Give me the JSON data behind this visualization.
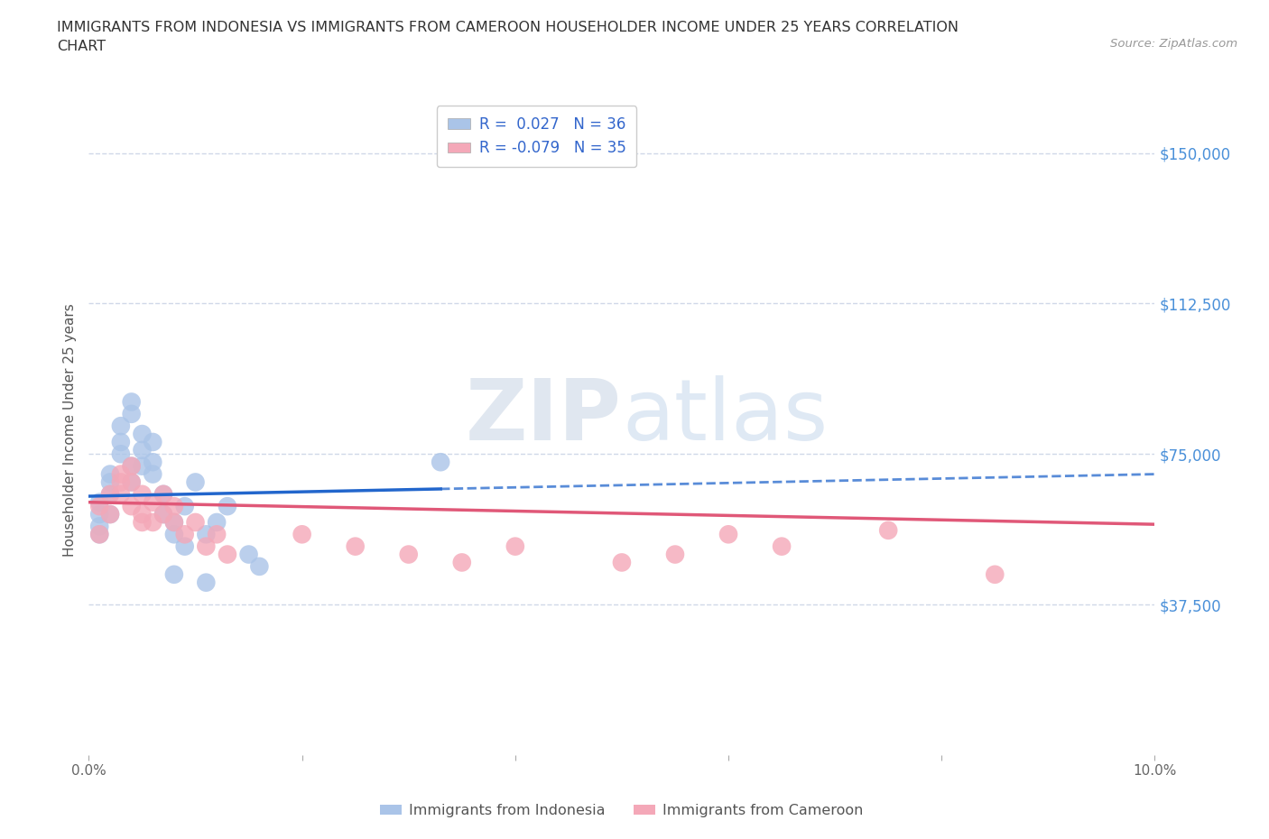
{
  "title": "IMMIGRANTS FROM INDONESIA VS IMMIGRANTS FROM CAMEROON HOUSEHOLDER INCOME UNDER 25 YEARS CORRELATION\nCHART",
  "source": "Source: ZipAtlas.com",
  "xlabel": "",
  "ylabel": "Householder Income Under 25 years",
  "xlim": [
    0.0,
    0.1
  ],
  "ylim": [
    0,
    162000
  ],
  "yticks": [
    0,
    37500,
    75000,
    112500,
    150000
  ],
  "ytick_labels": [
    "",
    "$37,500",
    "$75,000",
    "$112,500",
    "$150,000"
  ],
  "xticks": [
    0.0,
    0.02,
    0.04,
    0.06,
    0.08,
    0.1
  ],
  "xtick_labels": [
    "0.0%",
    "",
    "",
    "",
    "",
    "10.0%"
  ],
  "background_color": "#ffffff",
  "grid_color": "#d0d8e8",
  "indonesia_color": "#aac4e8",
  "cameroon_color": "#f4a8b8",
  "trend_indonesia_color": "#2266cc",
  "trend_cameroon_color": "#e05878",
  "r_indonesia": 0.027,
  "n_indonesia": 36,
  "r_cameroon": -0.079,
  "n_cameroon": 35,
  "watermark_zip": "ZIP",
  "watermark_atlas": "atlas",
  "legend_label_indonesia": "Immigrants from Indonesia",
  "legend_label_cameroon": "Immigrants from Cameroon",
  "indonesia_x": [
    0.001,
    0.001,
    0.001,
    0.001,
    0.002,
    0.002,
    0.002,
    0.002,
    0.003,
    0.003,
    0.003,
    0.004,
    0.004,
    0.004,
    0.004,
    0.005,
    0.005,
    0.005,
    0.006,
    0.006,
    0.006,
    0.007,
    0.007,
    0.008,
    0.008,
    0.009,
    0.009,
    0.01,
    0.011,
    0.012,
    0.013,
    0.015,
    0.016,
    0.033,
    0.011,
    0.008
  ],
  "indonesia_y": [
    60000,
    63000,
    57000,
    55000,
    65000,
    70000,
    68000,
    60000,
    78000,
    82000,
    75000,
    85000,
    88000,
    72000,
    68000,
    80000,
    76000,
    72000,
    78000,
    73000,
    70000,
    65000,
    60000,
    58000,
    55000,
    52000,
    62000,
    68000,
    55000,
    58000,
    62000,
    50000,
    47000,
    73000,
    43000,
    45000
  ],
  "cameroon_x": [
    0.001,
    0.001,
    0.002,
    0.002,
    0.003,
    0.003,
    0.003,
    0.004,
    0.004,
    0.004,
    0.005,
    0.005,
    0.005,
    0.006,
    0.006,
    0.007,
    0.007,
    0.008,
    0.008,
    0.009,
    0.01,
    0.011,
    0.012,
    0.013,
    0.02,
    0.025,
    0.03,
    0.035,
    0.04,
    0.05,
    0.055,
    0.06,
    0.065,
    0.075,
    0.085
  ],
  "cameroon_y": [
    62000,
    55000,
    65000,
    60000,
    70000,
    68000,
    65000,
    72000,
    68000,
    62000,
    65000,
    60000,
    58000,
    63000,
    58000,
    65000,
    60000,
    62000,
    58000,
    55000,
    58000,
    52000,
    55000,
    50000,
    55000,
    52000,
    50000,
    48000,
    52000,
    48000,
    50000,
    55000,
    52000,
    56000,
    45000
  ]
}
